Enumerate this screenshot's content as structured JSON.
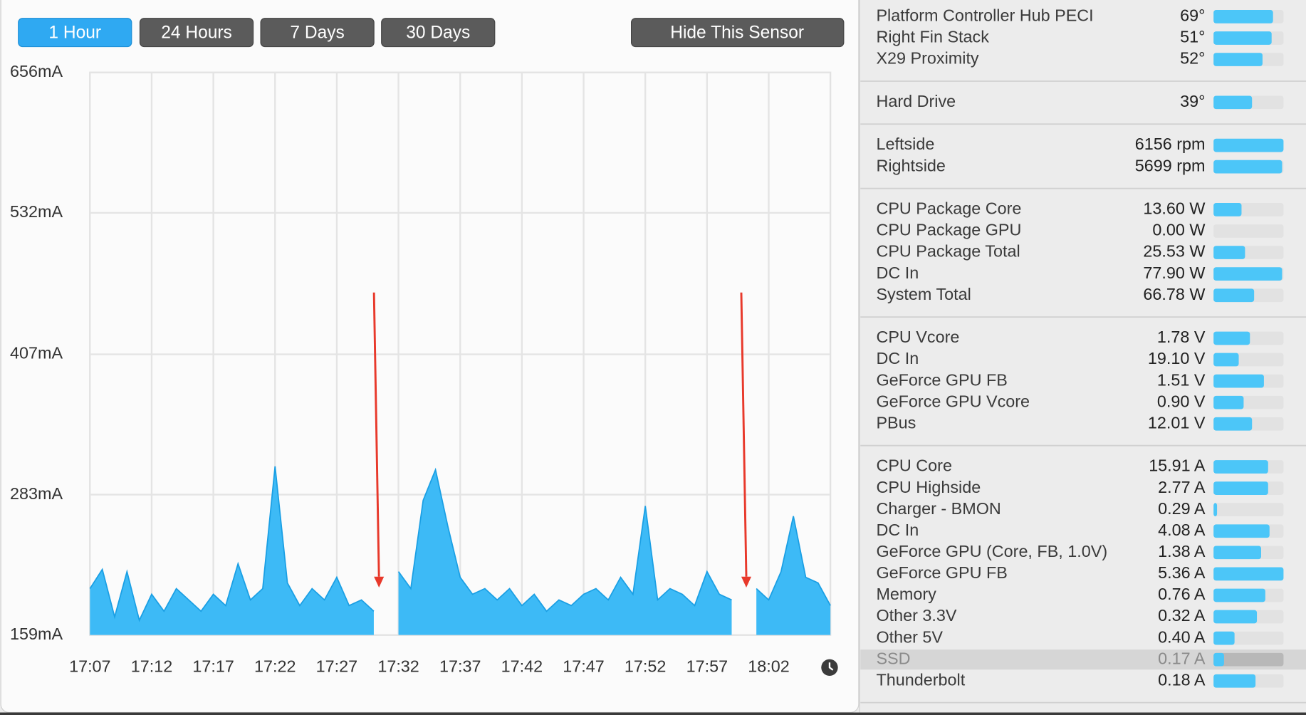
{
  "toolbar": {
    "ranges": [
      {
        "label": "1 Hour",
        "active": true
      },
      {
        "label": "24 Hours",
        "active": false
      },
      {
        "label": "7 Days",
        "active": false
      },
      {
        "label": "30 Days",
        "active": false
      }
    ],
    "hide_button": "Hide This Sensor"
  },
  "chart_data": {
    "type": "area",
    "x": [
      "17:07",
      "17:08",
      "17:09",
      "17:10",
      "17:11",
      "17:12",
      "17:13",
      "17:14",
      "17:15",
      "17:16",
      "17:17",
      "17:18",
      "17:19",
      "17:20",
      "17:21",
      "17:22",
      "17:23",
      "17:24",
      "17:25",
      "17:26",
      "17:27",
      "17:28",
      "17:29",
      "17:30",
      "17:31",
      "17:32",
      "17:33",
      "17:34",
      "17:35",
      "17:36",
      "17:37",
      "17:38",
      "17:39",
      "17:40",
      "17:41",
      "17:42",
      "17:43",
      "17:44",
      "17:45",
      "17:46",
      "17:47",
      "17:48",
      "17:49",
      "17:50",
      "17:51",
      "17:52",
      "17:53",
      "17:54",
      "17:55",
      "17:56",
      "17:57",
      "17:58",
      "17:59",
      "18:00",
      "18:01",
      "18:02",
      "18:03",
      "18:04",
      "18:05",
      "18:06",
      "18:07"
    ],
    "values": [
      200,
      217,
      175,
      215,
      172,
      195,
      180,
      200,
      190,
      180,
      195,
      185,
      222,
      190,
      200,
      308,
      205,
      185,
      200,
      190,
      210,
      185,
      190,
      180,
      null,
      215,
      200,
      278,
      305,
      255,
      210,
      195,
      200,
      190,
      200,
      185,
      195,
      180,
      190,
      185,
      195,
      200,
      190,
      210,
      195,
      273,
      190,
      200,
      195,
      185,
      215,
      195,
      190,
      null,
      200,
      190,
      215,
      264,
      210,
      205,
      185
    ],
    "color": "#3dbaf6",
    "line_color": "#1a9fe4",
    "ylim": [
      159,
      656
    ],
    "yticks": [
      {
        "value": 656,
        "label": "656mA"
      },
      {
        "value": 532,
        "label": "532mA"
      },
      {
        "value": 407,
        "label": "407mA"
      },
      {
        "value": 283,
        "label": "283mA"
      },
      {
        "value": 159,
        "label": "159mA"
      }
    ],
    "xticks": [
      "17:07",
      "17:12",
      "17:17",
      "17:22",
      "17:27",
      "17:32",
      "17:37",
      "17:42",
      "17:47",
      "17:52",
      "17:57",
      "18:02"
    ],
    "grid": true
  },
  "sensors": {
    "groups": [
      {
        "rows": [
          {
            "name": "Platform Controller Hub PECI",
            "value": "69°",
            "level": 0.85
          },
          {
            "name": "Right Fin Stack",
            "value": "51°",
            "level": 0.83
          },
          {
            "name": "X29 Proximity",
            "value": "52°",
            "level": 0.7
          }
        ]
      },
      {
        "rows": [
          {
            "name": "Hard Drive",
            "value": "39°",
            "level": 0.55
          }
        ]
      },
      {
        "rows": [
          {
            "name": "Leftside",
            "value": "6156 rpm",
            "level": 1.0
          },
          {
            "name": "Rightside",
            "value": "5699 rpm",
            "level": 0.98
          }
        ]
      },
      {
        "rows": [
          {
            "name": "CPU Package Core",
            "value": "13.60 W",
            "level": 0.4
          },
          {
            "name": "CPU Package GPU",
            "value": "0.00 W",
            "level": 0
          },
          {
            "name": "CPU Package Total",
            "value": "25.53 W",
            "level": 0.45
          },
          {
            "name": "DC In",
            "value": "77.90 W",
            "level": 0.98
          },
          {
            "name": "System Total",
            "value": "66.78 W",
            "level": 0.58
          }
        ]
      },
      {
        "rows": [
          {
            "name": "CPU Vcore",
            "value": "1.78 V",
            "level": 0.52
          },
          {
            "name": "DC In",
            "value": "19.10 V",
            "level": 0.36
          },
          {
            "name": "GeForce GPU FB",
            "value": "1.51 V",
            "level": 0.72
          },
          {
            "name": "GeForce GPU Vcore",
            "value": "0.90 V",
            "level": 0.43
          },
          {
            "name": "PBus",
            "value": "12.01 V",
            "level": 0.55
          }
        ]
      },
      {
        "rows": [
          {
            "name": "CPU Core",
            "value": "15.91 A",
            "level": 0.78
          },
          {
            "name": "CPU Highside",
            "value": "2.77 A",
            "level": 0.78
          },
          {
            "name": "Charger - BMON",
            "value": "0.29 A",
            "level": 0.05
          },
          {
            "name": "DC In",
            "value": "4.08 A",
            "level": 0.8
          },
          {
            "name": "GeForce GPU (Core, FB, 1.0V)",
            "value": "1.38 A",
            "level": 0.68
          },
          {
            "name": "GeForce GPU FB",
            "value": "5.36 A",
            "level": 1.0
          },
          {
            "name": "Memory",
            "value": "0.76 A",
            "level": 0.74
          },
          {
            "name": "Other 3.3V",
            "value": "0.32 A",
            "level": 0.62
          },
          {
            "name": "Other 5V",
            "value": "0.40 A",
            "level": 0.3
          },
          {
            "name": "SSD",
            "value": "0.17 A",
            "level": 0.15,
            "highlighted": true
          },
          {
            "name": "Thunderbolt",
            "value": "0.18 A",
            "level": 0.6
          }
        ]
      }
    ]
  }
}
